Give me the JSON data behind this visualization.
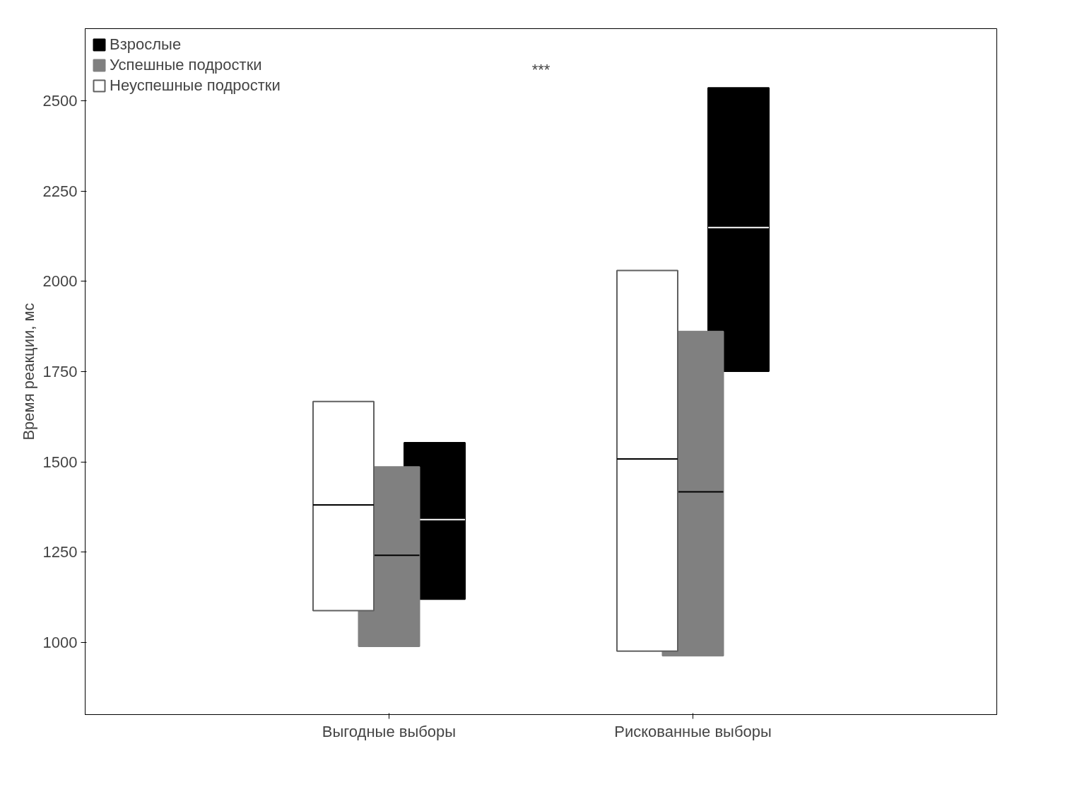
{
  "chart_data": {
    "type": "box",
    "ylabel": "Время реакции, мс",
    "categories": [
      "Выгодные выборы",
      "Рискованные выборы"
    ],
    "series": [
      {
        "name": "Взрослые",
        "color": "#000000",
        "boxes": [
          {
            "low": 1120,
            "q1": 1120,
            "median": 1340,
            "q3": 1553,
            "high": 1553
          },
          {
            "low": 1751,
            "q1": 1751,
            "median": 2149,
            "q3": 2536,
            "high": 2536
          }
        ]
      },
      {
        "name": "Успешные подростки",
        "color": "#808080",
        "boxes": [
          {
            "low": 989,
            "q1": 989,
            "median": 1241,
            "q3": 1486,
            "high": 1486
          },
          {
            "low": 963,
            "q1": 963,
            "median": 1417,
            "q3": 1861,
            "high": 1861
          }
        ]
      },
      {
        "name": "Неуспешные подростки",
        "color": "#ffffff",
        "boxes": [
          {
            "low": 1088,
            "q1": 1088,
            "median": 1381,
            "q3": 1667,
            "high": 1667
          },
          {
            "low": 976,
            "q1": 976,
            "median": 1508,
            "q3": 2030,
            "high": 2030
          }
        ]
      }
    ],
    "ylim": [
      800,
      2700
    ],
    "yticks": [
      1000,
      1250,
      1500,
      1750,
      2000,
      2250,
      2500
    ],
    "grid": false,
    "legend": "top left",
    "annotations": [
      "***"
    ]
  }
}
